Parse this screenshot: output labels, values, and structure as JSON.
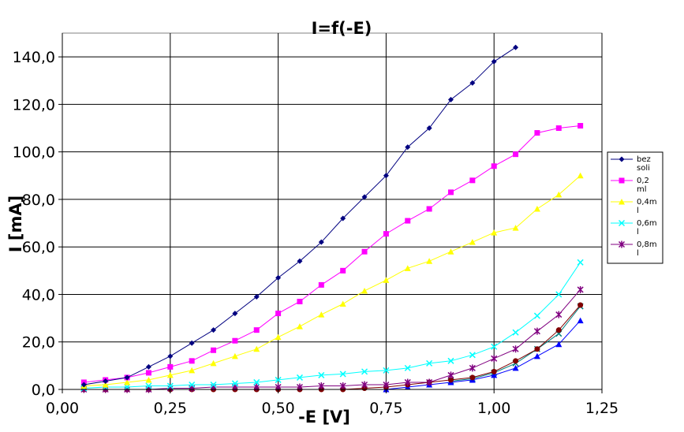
{
  "chart_data": {
    "type": "line",
    "title": "I=f(-E)",
    "xlabel": "-E [V]",
    "ylabel": "I [mA]",
    "xlim": [
      0,
      1.25
    ],
    "ylim": [
      0,
      150
    ],
    "x_ticks": [
      "0,00",
      "0,25",
      "0,50",
      "0,75",
      "1,00",
      "1,25"
    ],
    "y_ticks": [
      "0,0",
      "20,0",
      "40,0",
      "60,0",
      "80,0",
      "100,0",
      "120,0",
      "140,0"
    ],
    "grid": true,
    "legend_position": "right",
    "series": [
      {
        "name": "bez soli",
        "legend_lines": [
          "bez",
          "soli"
        ],
        "color": "#000080",
        "marker": "diamond",
        "points": [
          [
            0.05,
            2
          ],
          [
            0.1,
            3.5
          ],
          [
            0.15,
            5
          ],
          [
            0.2,
            9.5
          ],
          [
            0.25,
            14
          ],
          [
            0.3,
            19.5
          ],
          [
            0.35,
            25
          ],
          [
            0.4,
            32
          ],
          [
            0.45,
            39
          ],
          [
            0.5,
            47
          ],
          [
            0.55,
            54
          ],
          [
            0.6,
            62
          ],
          [
            0.65,
            72
          ],
          [
            0.7,
            81
          ],
          [
            0.75,
            90
          ],
          [
            0.8,
            102
          ],
          [
            0.85,
            110
          ],
          [
            0.9,
            122
          ],
          [
            0.95,
            129
          ],
          [
            1.0,
            138
          ],
          [
            1.05,
            144
          ]
        ]
      },
      {
        "name": "0,2 ml",
        "legend_lines": [
          "0,2",
          "ml"
        ],
        "color": "#ff00ff",
        "marker": "square",
        "points": [
          [
            0.05,
            3
          ],
          [
            0.1,
            4
          ],
          [
            0.15,
            5
          ],
          [
            0.2,
            7
          ],
          [
            0.25,
            9.5
          ],
          [
            0.3,
            12
          ],
          [
            0.35,
            16.5
          ],
          [
            0.4,
            20.5
          ],
          [
            0.45,
            25
          ],
          [
            0.5,
            32
          ],
          [
            0.55,
            37
          ],
          [
            0.6,
            44
          ],
          [
            0.65,
            50
          ],
          [
            0.7,
            58
          ],
          [
            0.75,
            65.5
          ],
          [
            0.8,
            71
          ],
          [
            0.85,
            76
          ],
          [
            0.9,
            83
          ],
          [
            0.95,
            88
          ],
          [
            1.0,
            94
          ],
          [
            1.05,
            99
          ],
          [
            1.1,
            108
          ],
          [
            1.15,
            110
          ],
          [
            1.2,
            111
          ]
        ]
      },
      {
        "name": "0,4m l",
        "legend_lines": [
          "0,4m",
          "l"
        ],
        "color": "#ffff00",
        "marker": "triangle",
        "points": [
          [
            0.05,
            1.5
          ],
          [
            0.1,
            2
          ],
          [
            0.15,
            3
          ],
          [
            0.2,
            4
          ],
          [
            0.25,
            6
          ],
          [
            0.3,
            8
          ],
          [
            0.35,
            11
          ],
          [
            0.4,
            14
          ],
          [
            0.45,
            17
          ],
          [
            0.5,
            22
          ],
          [
            0.55,
            26.5
          ],
          [
            0.6,
            31.5
          ],
          [
            0.65,
            36
          ],
          [
            0.7,
            41.5
          ],
          [
            0.75,
            46
          ],
          [
            0.8,
            51
          ],
          [
            0.85,
            54
          ],
          [
            0.9,
            58
          ],
          [
            0.95,
            62
          ],
          [
            1.0,
            66
          ],
          [
            1.05,
            68
          ],
          [
            1.1,
            76
          ],
          [
            1.15,
            82
          ],
          [
            1.2,
            90
          ]
        ]
      },
      {
        "name": "0,6m l",
        "legend_lines": [
          "0,6m",
          "l"
        ],
        "color": "#00ffff",
        "marker": "x",
        "points": [
          [
            0.05,
            0.5
          ],
          [
            0.1,
            1
          ],
          [
            0.15,
            1
          ],
          [
            0.2,
            1.5
          ],
          [
            0.25,
            1.5
          ],
          [
            0.3,
            2
          ],
          [
            0.35,
            2
          ],
          [
            0.4,
            2.5
          ],
          [
            0.45,
            3
          ],
          [
            0.5,
            4
          ],
          [
            0.55,
            5
          ],
          [
            0.6,
            6
          ],
          [
            0.65,
            6.5
          ],
          [
            0.7,
            7.5
          ],
          [
            0.75,
            8
          ],
          [
            0.8,
            9
          ],
          [
            0.85,
            11
          ],
          [
            0.9,
            12
          ],
          [
            0.95,
            14.5
          ],
          [
            1.0,
            18
          ],
          [
            1.05,
            24
          ],
          [
            1.1,
            31
          ],
          [
            1.15,
            40
          ],
          [
            1.2,
            53.5
          ]
        ]
      },
      {
        "name": "0,8m l",
        "legend_lines": [
          "0,8m",
          "l"
        ],
        "color": "#800080",
        "marker": "star",
        "points": [
          [
            0.05,
            0
          ],
          [
            0.1,
            0
          ],
          [
            0.15,
            0
          ],
          [
            0.2,
            0
          ],
          [
            0.25,
            0.5
          ],
          [
            0.3,
            0.5
          ],
          [
            0.35,
            1
          ],
          [
            0.4,
            1
          ],
          [
            0.45,
            1
          ],
          [
            0.5,
            1
          ],
          [
            0.55,
            1
          ],
          [
            0.6,
            1.5
          ],
          [
            0.65,
            1.5
          ],
          [
            0.7,
            2
          ],
          [
            0.75,
            2
          ],
          [
            0.8,
            3
          ],
          [
            0.85,
            3
          ],
          [
            0.9,
            6
          ],
          [
            0.95,
            9
          ],
          [
            1.0,
            13
          ],
          [
            1.05,
            17
          ],
          [
            1.1,
            24.5
          ],
          [
            1.15,
            31.5
          ],
          [
            1.2,
            42
          ]
        ]
      },
      {
        "name": "",
        "color": "#800000",
        "marker": "circle",
        "points": [
          [
            0.05,
            0
          ],
          [
            0.1,
            0
          ],
          [
            0.15,
            0
          ],
          [
            0.2,
            0
          ],
          [
            0.25,
            0
          ],
          [
            0.3,
            0
          ],
          [
            0.35,
            0
          ],
          [
            0.4,
            0
          ],
          [
            0.45,
            0
          ],
          [
            0.5,
            0
          ],
          [
            0.55,
            0
          ],
          [
            0.6,
            0
          ],
          [
            0.65,
            0
          ],
          [
            0.7,
            0.5
          ],
          [
            0.75,
            1
          ],
          [
            0.8,
            2
          ],
          [
            0.85,
            3
          ],
          [
            0.9,
            4
          ],
          [
            0.95,
            5
          ],
          [
            1.0,
            7.5
          ],
          [
            1.05,
            12
          ],
          [
            1.1,
            17
          ],
          [
            1.15,
            25
          ],
          [
            1.2,
            35.5
          ]
        ]
      },
      {
        "name": "",
        "color": "#0000ff",
        "marker": "triangle",
        "points": [
          [
            0.75,
            0
          ],
          [
            0.8,
            1
          ],
          [
            0.85,
            2
          ],
          [
            0.9,
            3
          ],
          [
            0.95,
            4
          ],
          [
            1.0,
            6
          ],
          [
            1.05,
            9
          ],
          [
            1.1,
            14
          ],
          [
            1.15,
            19
          ],
          [
            1.2,
            29
          ]
        ]
      },
      {
        "name": "",
        "color": "#008080",
        "marker": "x",
        "points": [
          [
            0.9,
            3.5
          ],
          [
            0.95,
            4.5
          ],
          [
            1.0,
            7
          ],
          [
            1.05,
            11
          ],
          [
            1.1,
            17
          ],
          [
            1.15,
            23.5
          ],
          [
            1.2,
            35
          ]
        ]
      }
    ]
  }
}
